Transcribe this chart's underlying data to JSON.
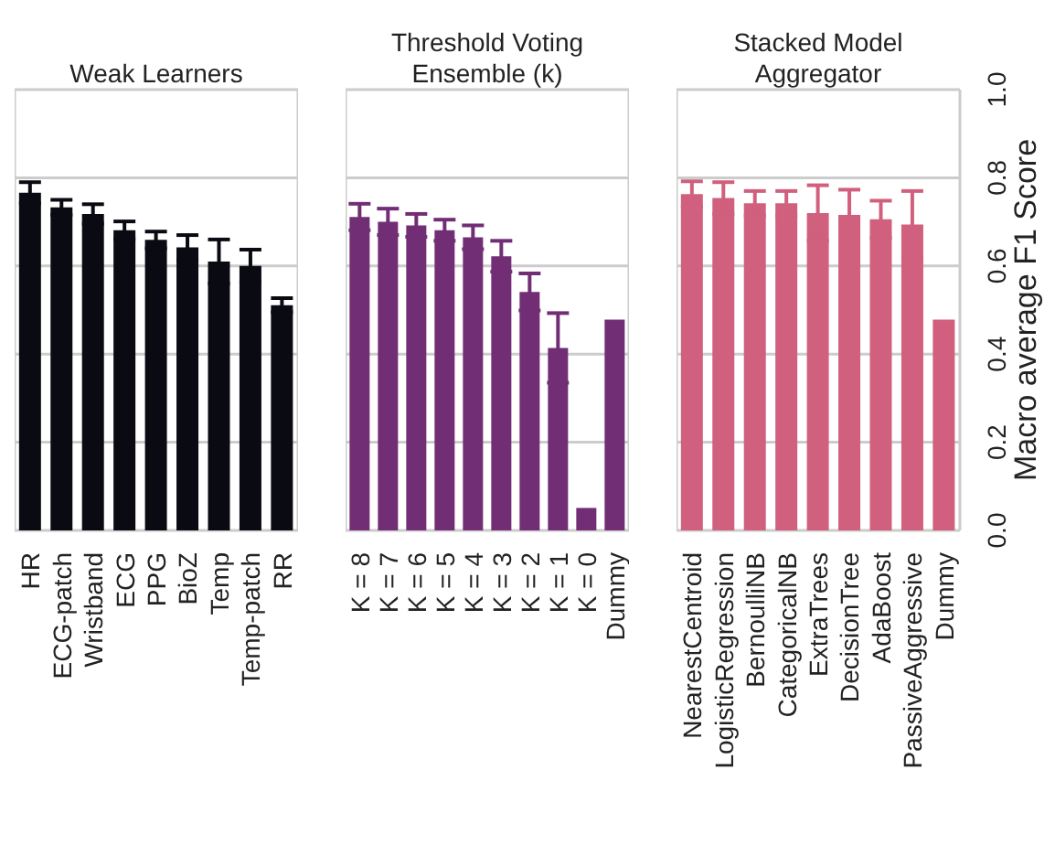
{
  "chart_data": [
    {
      "type": "bar",
      "title": "Weak Learners",
      "categories": [
        "HR",
        "ECG-patch",
        "Wristband",
        "ECG",
        "PPG",
        "BioZ",
        "Temp",
        "Temp-patch",
        "RR"
      ],
      "values": [
        0.766,
        0.733,
        0.718,
        0.681,
        0.659,
        0.642,
        0.61,
        0.6,
        0.511
      ],
      "errors": [
        0.024,
        0.017,
        0.022,
        0.02,
        0.019,
        0.028,
        0.05,
        0.037,
        0.016
      ],
      "color": "#0a0a12",
      "ylim": [
        0,
        1
      ],
      "yticks": [
        0,
        0.2,
        0.4,
        0.6,
        0.8,
        1
      ],
      "grid": "y",
      "tick_labels": "x"
    },
    {
      "type": "bar",
      "title": "Threshold Voting Ensemble (k)",
      "categories": [
        "K = 8",
        "K = 7",
        "K = 6",
        "K = 5",
        "K = 4",
        "K = 3",
        "K = 2",
        "K = 1",
        "K = 0",
        "Dummy"
      ],
      "values": [
        0.711,
        0.7,
        0.692,
        0.681,
        0.665,
        0.622,
        0.541,
        0.414,
        0.051,
        0.478
      ],
      "errors": [
        0.03,
        0.03,
        0.026,
        0.024,
        0.027,
        0.035,
        0.042,
        0.079,
        null,
        null
      ],
      "color": "#722e75",
      "ylim": [
        0,
        1
      ],
      "yticks": [
        0,
        0.2,
        0.4,
        0.6,
        0.8,
        1
      ],
      "grid": "y",
      "tick_labels": "x"
    },
    {
      "type": "bar",
      "title": "Stacked Model Aggregator",
      "ylabel": "Macro average F1 Score",
      "categories": [
        "NearestCentroid",
        "LogisticRegression",
        "BernoulliNB",
        "CategoricalNB",
        "ExtraTrees",
        "DecisionTree",
        "AdaBoost",
        "PassiveAggressive",
        "Dummy"
      ],
      "values": [
        0.763,
        0.754,
        0.742,
        0.742,
        0.72,
        0.716,
        0.706,
        0.694,
        0.478
      ],
      "errors": [
        0.029,
        0.036,
        0.028,
        0.028,
        0.063,
        0.057,
        0.042,
        0.076,
        null
      ],
      "color": "#d0607d",
      "ylim": [
        0,
        1
      ],
      "yticks": [
        {
          "value": 0,
          "label": "0.0"
        },
        0.2,
        0.4,
        0.6,
        0.8,
        {
          "value": 1,
          "label": "1.0"
        }
      ],
      "grid": "y"
    }
  ]
}
